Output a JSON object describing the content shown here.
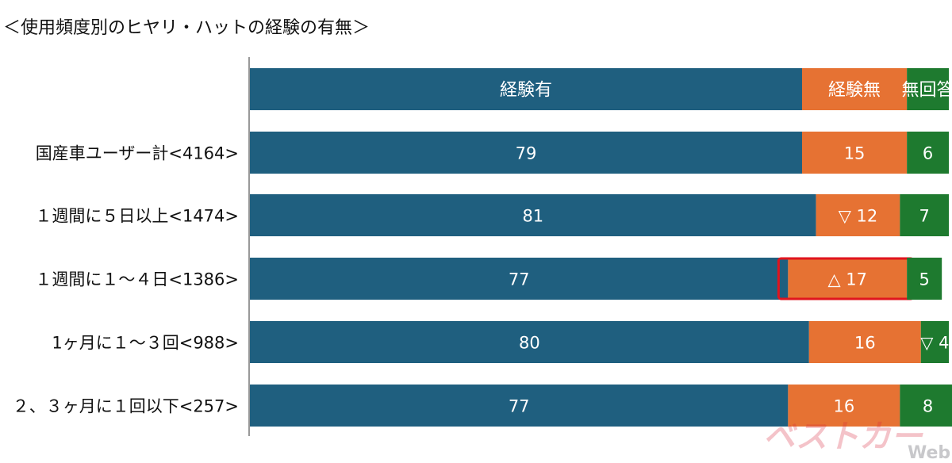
{
  "chart_data": {
    "type": "bar",
    "orientation": "horizontal",
    "stacked": true,
    "normalized": true,
    "title": "＜使用頻度別のヒヤリ・ハットの経験の有無＞",
    "legend": {
      "placement": "top",
      "entries": [
        "経験有",
        "経験無",
        "無回答"
      ]
    },
    "categories": [
      "国産車ユーザー計<4164>",
      "１週間に５日以上<1474>",
      "１週間に１～４日<1386>",
      "1ヶ月に１～３回<988>",
      "２、３ヶ月に１回以下<257>"
    ],
    "series": [
      {
        "name": "経験有",
        "color": "#1f5f7f",
        "values": [
          79,
          81,
          77,
          80,
          77
        ],
        "labels": [
          "79",
          "81",
          "77",
          "80",
          "77"
        ]
      },
      {
        "name": "経験無",
        "color": "#e67233",
        "values": [
          15,
          12,
          17,
          16,
          16
        ],
        "labels": [
          "15",
          "▽ 12",
          "△ 17",
          "16",
          "16"
        ]
      },
      {
        "name": "無回答",
        "color": "#1e7a2f",
        "values": [
          6,
          7,
          5,
          4,
          8
        ],
        "labels": [
          "6",
          "7",
          "5",
          "▽ 4",
          "8"
        ]
      }
    ],
    "xlim": [
      0,
      100
    ],
    "grid": false,
    "highlight": {
      "category_index": 2,
      "series_index": 1,
      "color": "#e0141e"
    }
  },
  "watermark": {
    "brand": "ベストカー",
    "suffix": "Web"
  }
}
